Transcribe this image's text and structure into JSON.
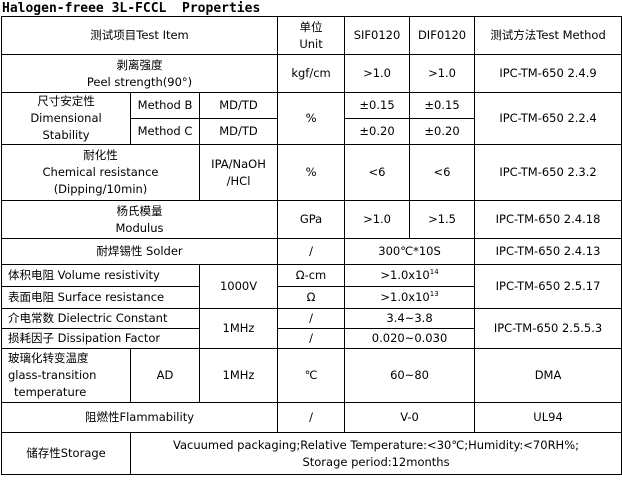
{
  "title": "Halogen-freee 3L-FCCL  Properties",
  "header": {
    "item": "测试项目Test Item",
    "unit_line1": "单位",
    "unit_line2": "Unit",
    "sif": "SIF0120",
    "dif": "DIF0120",
    "method": "测试方法Test Method"
  },
  "peel": {
    "name_cn": "剥离强度",
    "name_en": "Peel strength(90°)",
    "unit": "kgf/cm",
    "sif": ">1.0",
    "dif": ">1.0",
    "method": "IPC-TM-650 2.4.9"
  },
  "dimensional": {
    "name_line1": "尺寸安定性",
    "name_line2": "Dimensional",
    "name_line3": "Stability",
    "method_b": "Method B",
    "method_c": "Method C",
    "dir_b": "MD/TD",
    "dir_c": "MD/TD",
    "unit": "%",
    "sif_b": "±0.15",
    "dif_b": "±0.15",
    "sif_c": "±0.20",
    "dif_c": "±0.20",
    "method": "IPC-TM-650 2.2.4"
  },
  "chemical": {
    "name_cn": "耐化性",
    "name_en1": "Chemical resistance",
    "name_en2": "(Dipping/10min)",
    "cond1": "IPA/NaOH",
    "cond2": "/HCl",
    "unit": "%",
    "sif": "<6",
    "dif": "<6",
    "method": "IPC-TM-650 2.3.2"
  },
  "modulus": {
    "name_cn": "杨氏模量",
    "name_en": "Modulus",
    "unit": "GPa",
    "sif": ">1.0",
    "dif": ">1.5",
    "method": "IPC-TM-650 2.4.18"
  },
  "solder": {
    "name": "耐焊锡性 Solder",
    "unit": "/",
    "value": "300℃*10S",
    "method": "IPC-TM-650 2.4.13"
  },
  "resistivity": {
    "volume_name": "体积电阻 Volume resistivity",
    "surface_name": "表面电阻 Surface resistance",
    "condition": "1000V",
    "volume_unit": "Ω-cm",
    "surface_unit": "Ω",
    "volume_value": ">1.0x10",
    "volume_exp": "14",
    "surface_value": ">1.0x10",
    "surface_exp": "13",
    "method": "IPC-TM-650 2.5.17"
  },
  "dielectric": {
    "constant_name": "介电常数 Dielectric Constant",
    "dissipation_name": "损耗因子 Dissipation Factor",
    "condition": "1MHz",
    "constant_unit": "/",
    "dissipation_unit": "/",
    "constant_value": "3.4~3.8",
    "dissipation_value": "0.020~0.030",
    "method": "IPC-TM-650 2.5.5.3"
  },
  "glass": {
    "name_line1": "玻璃化转变温度",
    "name_line2": "glass-transition",
    "name_line3": "temperature",
    "cond1": "AD",
    "cond2": "1MHz",
    "unit": "℃",
    "value": "60~80",
    "method": "DMA"
  },
  "flammability": {
    "name": "阻燃性Flammability",
    "unit": "/",
    "value": "V-0",
    "method": "UL94"
  },
  "storage": {
    "name": "储存性Storage",
    "line1": "Vacuumed packaging;Relative Temperature:<30℃;Humidity:<70RH%;",
    "line2": "Storage period:12months"
  }
}
